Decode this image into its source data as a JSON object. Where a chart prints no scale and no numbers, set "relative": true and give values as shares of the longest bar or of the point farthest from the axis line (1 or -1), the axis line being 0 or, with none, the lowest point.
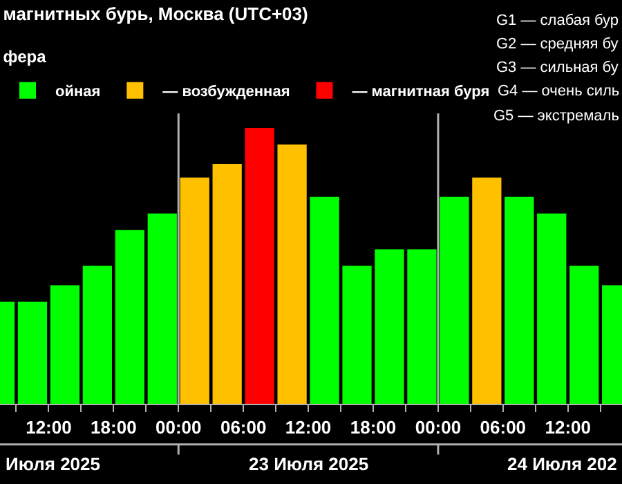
{
  "chart_data": {
    "type": "bar",
    "title": "магнитных бурь, Москва (UTC+03)",
    "subtitle": "фера",
    "relative": true,
    "x": [
      "2025-07-22T07:30",
      "2025-07-22T10:30",
      "2025-07-22T13:30",
      "2025-07-22T16:30",
      "2025-07-22T19:30",
      "2025-07-22T22:30",
      "2025-07-23T01:30",
      "2025-07-23T04:30",
      "2025-07-23T07:30",
      "2025-07-23T10:30",
      "2025-07-23T13:30",
      "2025-07-23T16:30",
      "2025-07-23T19:30",
      "2025-07-23T22:30",
      "2025-07-24T01:30",
      "2025-07-24T04:30",
      "2025-07-24T07:30",
      "2025-07-24T10:30",
      "2025-07-24T13:30",
      "2025-07-24T16:30"
    ],
    "series": [
      {
        "name": "ойная",
        "color": "#00ff00",
        "values": [
          0.37,
          0.37,
          0.43,
          0.5,
          0.63,
          0.69,
          null,
          null,
          null,
          null,
          0.75,
          0.5,
          0.56,
          0.56,
          0.75,
          null,
          0.75,
          0.69,
          0.5,
          0.43
        ]
      },
      {
        "name": "— возбужденная",
        "color": "#ffc000",
        "values": [
          null,
          null,
          null,
          null,
          null,
          null,
          0.82,
          0.87,
          null,
          0.94,
          null,
          null,
          null,
          null,
          null,
          0.82,
          null,
          null,
          null,
          null
        ]
      },
      {
        "name": "— магнитная буря",
        "color": "#ff0000",
        "values": [
          null,
          null,
          null,
          null,
          null,
          null,
          null,
          null,
          1,
          null,
          null,
          null,
          null,
          null,
          null,
          null,
          null,
          null,
          null,
          null
        ]
      }
    ],
    "xlim": [
      "2025-07-22T07:30",
      "2025-07-24T17:00"
    ],
    "xticks": [
      {
        "value": "2025-07-22T09:00",
        "label": null
      },
      {
        "value": "2025-07-22T12:00",
        "label": "12:00"
      },
      {
        "value": "2025-07-22T15:00",
        "label": null
      },
      {
        "value": "2025-07-22T18:00",
        "label": "18:00"
      },
      {
        "value": "2025-07-22T21:00",
        "label": null
      },
      {
        "value": "2025-07-23T00:00",
        "label": "00:00"
      },
      {
        "value": "2025-07-23T03:00",
        "label": null
      },
      {
        "value": "2025-07-23T06:00",
        "label": "06:00"
      },
      {
        "value": "2025-07-23T09:00",
        "label": null
      },
      {
        "value": "2025-07-23T12:00",
        "label": "12:00"
      },
      {
        "value": "2025-07-23T15:00",
        "label": null
      },
      {
        "value": "2025-07-23T18:00",
        "label": "18:00"
      },
      {
        "value": "2025-07-23T21:00",
        "label": null
      },
      {
        "value": "2025-07-24T00:00",
        "label": "00:00"
      },
      {
        "value": "2025-07-24T03:00",
        "label": null
      },
      {
        "value": "2025-07-24T06:00",
        "label": "06:00"
      },
      {
        "value": "2025-07-24T09:00",
        "label": null
      },
      {
        "value": "2025-07-24T12:00",
        "label": "12:00"
      },
      {
        "value": "2025-07-24T15:00",
        "label": null
      }
    ],
    "ref_lines": [
      {
        "axis": "x",
        "value": "2025-07-23T00:00",
        "color": "#b0b0b0"
      },
      {
        "axis": "x",
        "value": "2025-07-24T00:00",
        "color": "#b0b0b0"
      }
    ],
    "legend": "top left",
    "annotations": [
      "G1 — слабая бур",
      "G2 — средняя бу",
      "G3 — сильная бу",
      "G4 — очень силь",
      "G5 — экстремаль",
      "Июля 2025",
      "23 Июля 2025",
      "24 Июля 202"
    ]
  }
}
